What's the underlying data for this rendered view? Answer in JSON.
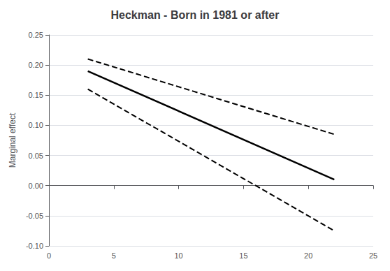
{
  "chart_data": {
    "type": "line",
    "title": "Heckman - Born in 1981 or after",
    "ylabel": "Marginal effect",
    "x": [
      3,
      22
    ],
    "series": [
      {
        "values": [
          0.19,
          0.01
        ],
        "color": "#000000",
        "line_style": "solid"
      },
      {
        "values": [
          0.21,
          0.085
        ],
        "color": "#000000",
        "line_style": "dashed"
      },
      {
        "values": [
          0.16,
          -0.075
        ],
        "color": "#000000",
        "line_style": "dashed"
      }
    ],
    "xlim": [
      0,
      25
    ],
    "xticks": [
      0,
      5,
      10,
      15,
      20,
      25
    ],
    "ylim": [
      -0.1,
      0.25
    ],
    "yticks": [
      {
        "value": -0.1,
        "label": "-0.10"
      },
      -0.05,
      {
        "value": 0.0,
        "label": "0.00"
      },
      0.05,
      {
        "value": 0.1,
        "label": "0.10"
      },
      0.15,
      {
        "value": 0.2,
        "label": "0.20"
      },
      0.25
    ],
    "grid": true
  }
}
